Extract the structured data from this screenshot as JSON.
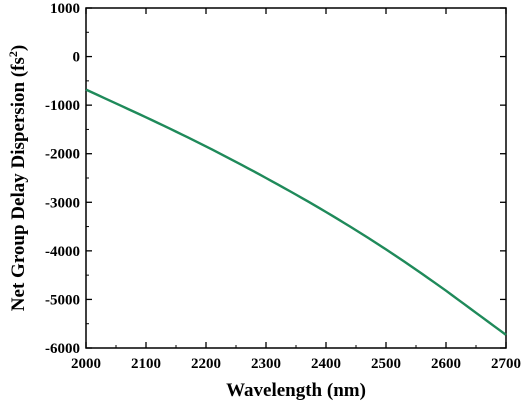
{
  "chart_data": {
    "type": "line",
    "title": "",
    "xlabel": "Wavelength (nm)",
    "ylabel_main": "Net Group Delay Dispersion (fs",
    "ylabel_sup": "2",
    "ylabel_close": ")",
    "xlim": [
      2000,
      2700
    ],
    "ylim": [
      -6000,
      1000
    ],
    "x_ticks": [
      "2000",
      "2100",
      "2200",
      "2300",
      "2400",
      "2500",
      "2600",
      "2700"
    ],
    "y_ticks": [
      "1000",
      "0",
      "-1000",
      "-2000",
      "-3000",
      "-4000",
      "-5000",
      "-6000"
    ],
    "grid": false,
    "series": [
      {
        "color": "#1f8a5a",
        "x": [
          2000,
          2100,
          2200,
          2300,
          2400,
          2500,
          2600,
          2700
        ],
        "y": [
          -680,
          -1250,
          -1850,
          -2500,
          -3200,
          -3970,
          -4820,
          -5730
        ]
      }
    ]
  }
}
